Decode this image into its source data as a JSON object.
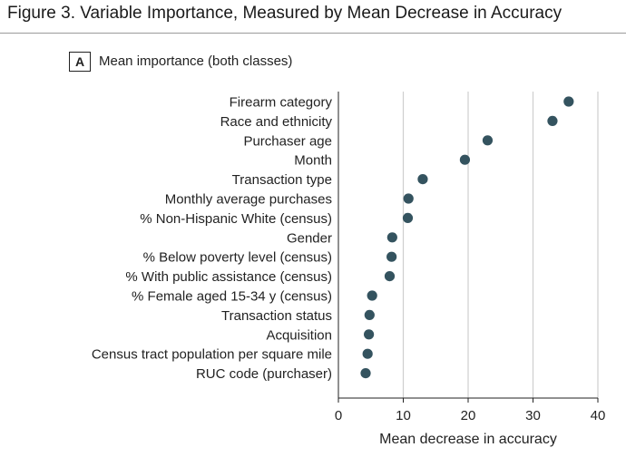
{
  "figure": {
    "title": "Figure 3. Variable Importance, Measured by Mean Decrease in Accuracy",
    "panel_letter": "A",
    "panel_label": "Mean importance (both classes)"
  },
  "colors": {
    "point": "#34535f",
    "grid": "#cfcfcf",
    "axis": "#222222"
  },
  "chart_data": {
    "type": "scatter",
    "title": "Mean importance (both classes)",
    "xlabel": "Mean decrease in accuracy",
    "ylabel": "",
    "xlim": [
      0,
      40
    ],
    "xticks": [
      0,
      10,
      20,
      30,
      40
    ],
    "grid": "vertical",
    "categories": [
      "Firearm category",
      "Race and ethnicity",
      "Purchaser age",
      "Month",
      "Transaction type",
      "Monthly average purchases",
      "% Non-Hispanic White (census)",
      "Gender",
      "% Below poverty level (census)",
      "% With public assistance (census)",
      "% Female aged 15-34 y (census)",
      "Transaction status",
      "Acquisition",
      "Census tract  population per square mile",
      "RUC code (purchaser)"
    ],
    "values": [
      35.5,
      33.0,
      23.0,
      19.5,
      13.0,
      10.8,
      10.7,
      8.3,
      8.2,
      7.9,
      5.2,
      4.8,
      4.7,
      4.5,
      4.2
    ]
  }
}
